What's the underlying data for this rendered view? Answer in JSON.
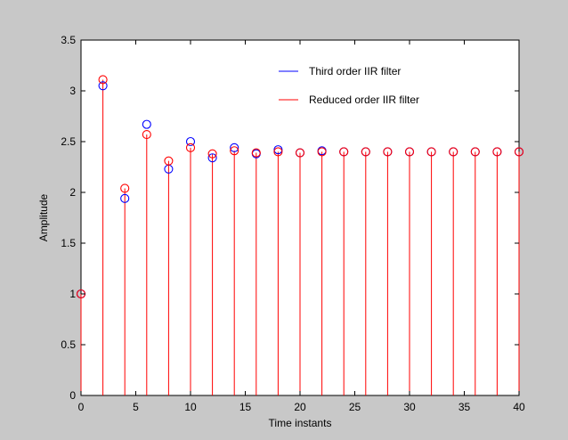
{
  "chart_data": {
    "type": "scatter",
    "plot_style": "stem",
    "x": [
      0,
      2,
      4,
      6,
      8,
      10,
      12,
      14,
      16,
      18,
      20,
      22,
      24,
      26,
      28,
      30,
      32,
      34,
      36,
      38,
      40
    ],
    "series": [
      {
        "name": "Third order IIR filter",
        "color": "#0000ff",
        "marker": "circle",
        "values": [
          1.0,
          3.05,
          1.94,
          2.67,
          2.23,
          2.5,
          2.34,
          2.44,
          2.38,
          2.42,
          2.39,
          2.41,
          2.4,
          2.4,
          2.4,
          2.4,
          2.4,
          2.4,
          2.4,
          2.4,
          2.4
        ]
      },
      {
        "name": "Reduced order IIR filter",
        "color": "#ff0000",
        "marker": "circle",
        "values": [
          1.0,
          3.11,
          2.04,
          2.57,
          2.31,
          2.44,
          2.38,
          2.41,
          2.39,
          2.4,
          2.39,
          2.4,
          2.4,
          2.4,
          2.4,
          2.4,
          2.4,
          2.4,
          2.4,
          2.4,
          2.4
        ]
      }
    ],
    "xlabel": "Time instants",
    "ylabel": "Amplitude",
    "xlim": [
      0,
      40
    ],
    "ylim": [
      0,
      3.5
    ],
    "xticks": [
      0,
      5,
      10,
      15,
      20,
      25,
      30,
      35,
      40
    ],
    "yticks": [
      0,
      0.5,
      1,
      1.5,
      2,
      2.5,
      3,
      3.5
    ],
    "xtick_labels": [
      "0",
      "5",
      "10",
      "15",
      "20",
      "25",
      "30",
      "35",
      "40"
    ],
    "ytick_labels": [
      "0",
      "0.5",
      "1",
      "1.5",
      "2",
      "2.5",
      "3",
      "3.5"
    ],
    "grid": false,
    "legend_position": "top-right",
    "background_color": "#c8c8c8",
    "plot_background_color": "#ffffff"
  }
}
